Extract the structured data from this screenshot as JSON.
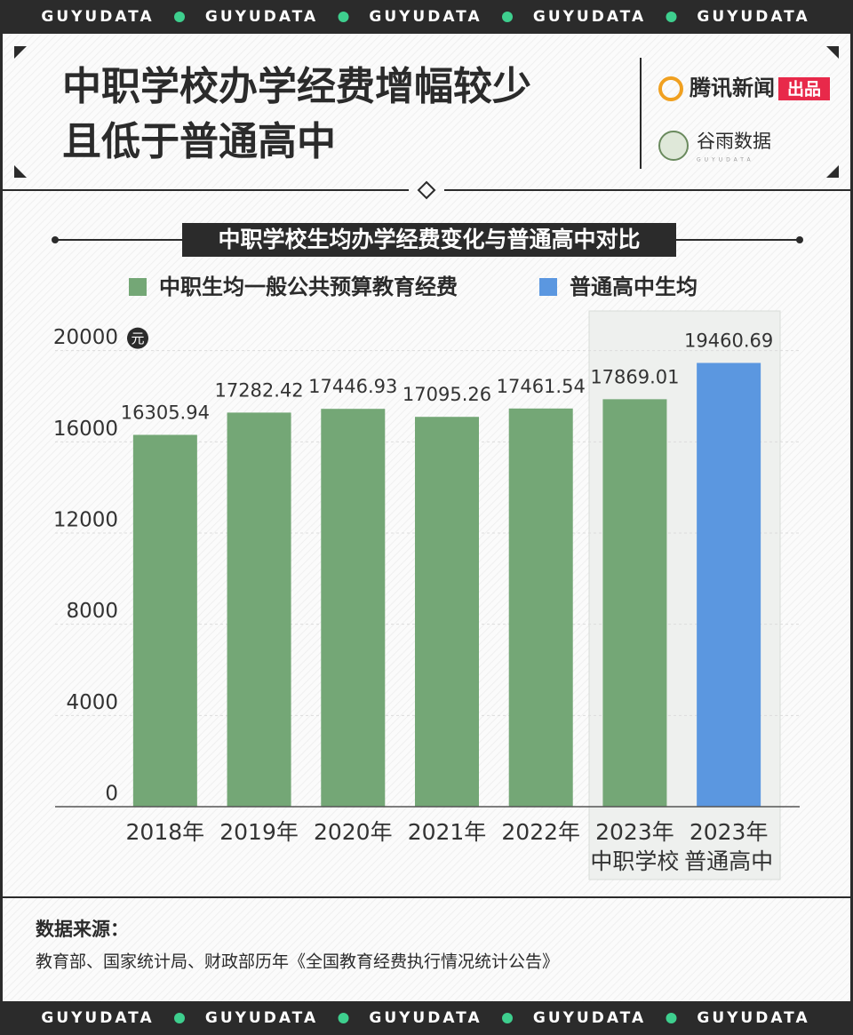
{
  "banner": "GUYUDATA",
  "header": {
    "title_lines": [
      "中职学校办学经费增幅较少",
      "且低于普通高中"
    ],
    "brands": {
      "publisher": "腾讯新闻",
      "publisher_tag": "出品",
      "studio": "谷雨数据",
      "studio_sub": "GUYUDATA"
    }
  },
  "chart_data": {
    "type": "bar",
    "title": "中职学校生均办学经费变化与普通高中对比",
    "y_unit": "元",
    "categories": [
      [
        "2018年"
      ],
      [
        "2019年"
      ],
      [
        "2020年"
      ],
      [
        "2021年"
      ],
      [
        "2022年"
      ],
      [
        "2023年",
        "中职学校"
      ],
      [
        "2023年",
        "普通高中"
      ]
    ],
    "series": [
      {
        "name": "中职生均一般公共预算教育经费",
        "color": "#74a776",
        "values": [
          16305.94,
          17282.42,
          17446.93,
          17095.26,
          17461.54,
          17869.01,
          null
        ]
      },
      {
        "name": "普通高中生均",
        "color": "#5b97e0",
        "values": [
          null,
          null,
          null,
          null,
          null,
          null,
          19460.69
        ]
      }
    ],
    "ylim": [
      0,
      21000
    ],
    "yticks": [
      0,
      4000,
      8000,
      12000,
      16000,
      20000
    ],
    "grid": true
  },
  "source": {
    "label": "数据来源：",
    "text": "教育部、国家统计局、财政部历年《全国教育经费执行情况统计公告》"
  }
}
